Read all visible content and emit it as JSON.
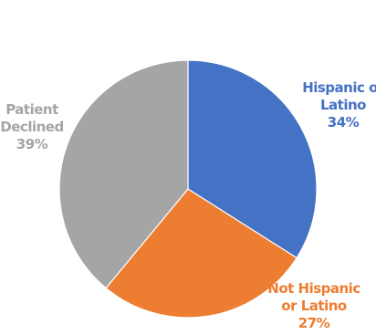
{
  "chart_data": {
    "type": "pie",
    "title": "",
    "start_angle_deg": 0,
    "direction": "clockwise",
    "slices": [
      {
        "label_lines": [
          "Hispanic or",
          "Latino"
        ],
        "value": 34,
        "value_label": "34%",
        "color": "#4472C4"
      },
      {
        "label_lines": [
          "Not Hispanic",
          "or Latino"
        ],
        "value": 27,
        "value_label": "27%",
        "color": "#ED7D31"
      },
      {
        "label_lines": [
          "Patient",
          "Declined"
        ],
        "value": 39,
        "value_label": "39%",
        "color": "#A5A5A5"
      }
    ],
    "legend": "none",
    "labels_placement": "outside"
  }
}
